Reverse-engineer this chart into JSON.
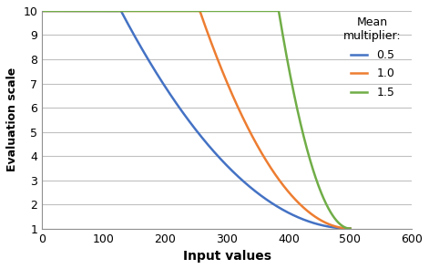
{
  "title": "",
  "xlabel": "Input values",
  "ylabel": "Evaluation scale",
  "xlim": [
    0,
    600
  ],
  "ylim": [
    1,
    10
  ],
  "xticks": [
    0,
    100,
    200,
    300,
    400,
    500,
    600
  ],
  "yticks": [
    1,
    2,
    3,
    4,
    5,
    6,
    7,
    8,
    9,
    10
  ],
  "mean": 500,
  "multipliers": [
    0.5,
    1.0,
    1.5
  ],
  "colors": [
    "#4472C4",
    "#ED7D31",
    "#70AD47"
  ],
  "legend_title": "Mean\nmultiplier:",
  "legend_labels": [
    "0.5",
    "1.0",
    "1.5"
  ],
  "background_color": "#FFFFFF",
  "grid_color": "#C0C0C0",
  "linewidth": 1.8
}
